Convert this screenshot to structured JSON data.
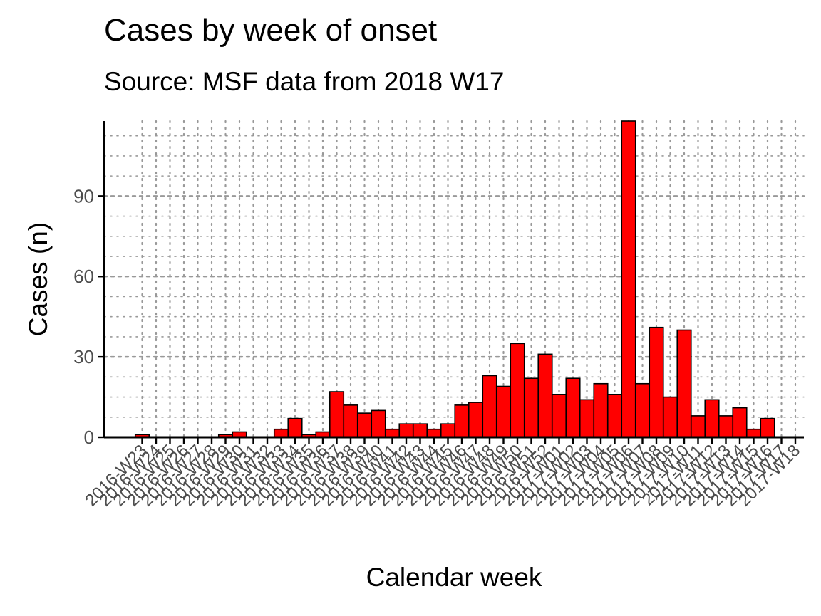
{
  "chart_data": {
    "type": "bar",
    "title": "Cases by week of onset",
    "subtitle": "Source: MSF data from 2018 W17",
    "xlabel": "Calendar week",
    "ylabel": "Cases (n)",
    "ylim": [
      0,
      118
    ],
    "yticks": [
      0,
      30,
      60,
      90
    ],
    "grid": "dotted",
    "legend": "none",
    "colors": {
      "bar_fill": "#ff0000",
      "bar_stroke": "#000000",
      "grid": "#999999",
      "axis": "#000000"
    },
    "categories": [
      "2016-W23",
      "2016-W24",
      "2016-W25",
      "2016-W26",
      "2016-W27",
      "2016-W28",
      "2016-W29",
      "2016-W30",
      "2016-W31",
      "2016-W32",
      "2016-W33",
      "2016-W34",
      "2016-W35",
      "2016-W36",
      "2016-W37",
      "2016-W38",
      "2016-W39",
      "2016-W40",
      "2016-W41",
      "2016-W42",
      "2016-W43",
      "2016-W44",
      "2016-W45",
      "2016-W46",
      "2016-W47",
      "2016-W48",
      "2016-W49",
      "2016-W50",
      "2016-W51",
      "2016-W52",
      "2017-W01",
      "2017-W02",
      "2017-W03",
      "2017-W04",
      "2017-W05",
      "2017-W06",
      "2017-W07",
      "2017-W08",
      "2017-W09",
      "2017-W10",
      "2017-W11",
      "2017-W12",
      "2017-W13",
      "2017-W14",
      "2017-W15",
      "2017-W16",
      "2017-W17",
      "2017-W18"
    ],
    "values": [
      1,
      0,
      0,
      0,
      0,
      0,
      1,
      2,
      0,
      0,
      3,
      7,
      1,
      2,
      17,
      12,
      9,
      10,
      3,
      5,
      5,
      3,
      5,
      12,
      13,
      23,
      19,
      35,
      22,
      31,
      16,
      22,
      14,
      20,
      16,
      118,
      20,
      41,
      15,
      40,
      8,
      14,
      8,
      11,
      3,
      7,
      0,
      0
    ]
  }
}
